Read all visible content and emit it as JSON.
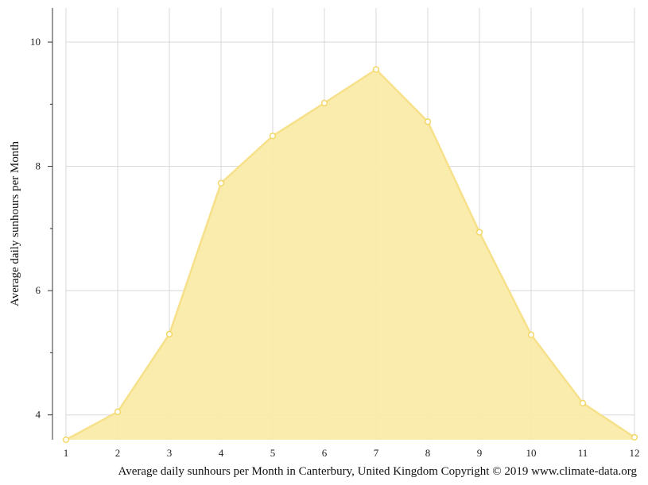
{
  "chart_data": {
    "type": "area",
    "x": [
      1,
      2,
      3,
      4,
      5,
      6,
      7,
      8,
      9,
      10,
      11,
      12
    ],
    "series": [
      {
        "values": [
          3.6,
          4.05,
          5.3,
          7.73,
          8.49,
          9.02,
          9.56,
          8.72,
          6.94,
          5.29,
          4.19,
          3.64
        ]
      }
    ],
    "xlabel": "",
    "ylabel": "Average daily sunhours per Month",
    "caption": "Average daily sunhours per Month in Canterbury, United Kingdom Copyright © 2019 www.climate-data.org",
    "x_ticks": [
      "1",
      "2",
      "3",
      "4",
      "5",
      "6",
      "7",
      "8",
      "9",
      "10",
      "11",
      "12"
    ],
    "y_ticks": [
      "4",
      "6",
      "8",
      "10"
    ],
    "xlim": [
      1,
      12
    ],
    "ylim": [
      3.6,
      10.55
    ],
    "grid": true,
    "colors": {
      "fill": "#f9eba8",
      "line": "#f7e08a",
      "marker_fill": "#ffffff",
      "marker_stroke": "#f2d768",
      "grid": "#d8d8d8",
      "axis": "#333333"
    }
  }
}
